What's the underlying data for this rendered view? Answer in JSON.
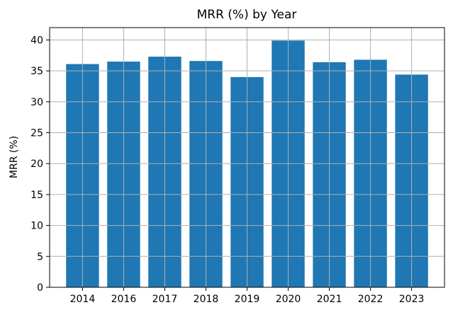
{
  "chart_data": {
    "type": "bar",
    "title": "MRR (%) by Year",
    "xlabel": "",
    "ylabel": "MRR (%)",
    "categories": [
      "2014",
      "2016",
      "2017",
      "2018",
      "2019",
      "2020",
      "2021",
      "2022",
      "2023"
    ],
    "values": [
      36.1,
      36.5,
      37.3,
      36.6,
      34.0,
      39.9,
      36.4,
      36.8,
      34.4
    ],
    "ylim": [
      0,
      42
    ],
    "yticks": [
      0,
      5,
      10,
      15,
      20,
      25,
      30,
      35,
      40
    ],
    "grid": true,
    "bar_color": "#1f77b4",
    "grid_color": "#b0b0b0"
  }
}
